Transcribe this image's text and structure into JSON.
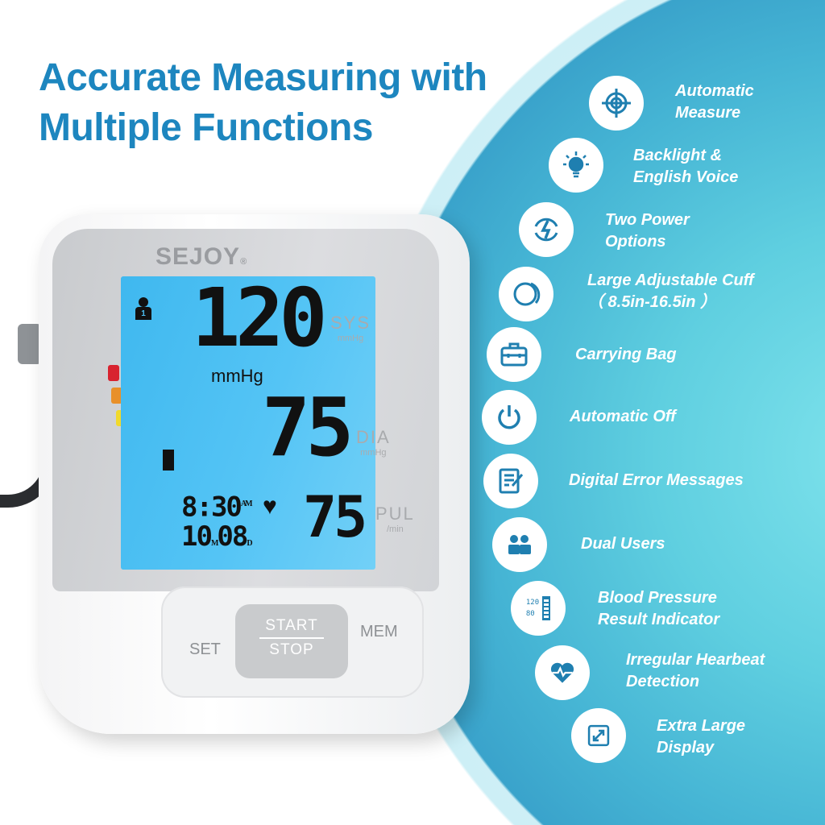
{
  "title": {
    "line1": "Accurate Measuring with",
    "line2": "Multiple Functions"
  },
  "device": {
    "brand": "SEJOY",
    "registered": "®",
    "display": {
      "sys": "120",
      "dia": "75",
      "pul": "75",
      "unit": "mmHg",
      "time": "8:30",
      "ampm": "AM",
      "month": "10",
      "month_label": "M",
      "day": "08",
      "day_label": "D",
      "user": "1"
    },
    "labels": {
      "sys": "SYS",
      "sys_unit": "mmHg",
      "dia": "DIA",
      "dia_unit": "mmHg",
      "pul": "PUL",
      "pul_unit": "/min"
    },
    "indicator_colors": [
      "#d8232f",
      "#e8902a",
      "#f1d92c",
      "#3dbd3a",
      "#3dbd3a",
      "#3dbd3a"
    ],
    "buttons": {
      "set": "SET",
      "start": "START",
      "stop": "STOP",
      "mem": "MEM"
    }
  },
  "features": [
    {
      "icon": "target-icon",
      "line1": "Automatic",
      "line2": "Measure"
    },
    {
      "icon": "lightbulb-icon",
      "line1": "Backlight &",
      "line2": "English Voice"
    },
    {
      "icon": "power-cycle-icon",
      "line1": "Two Power",
      "line2": "Options"
    },
    {
      "icon": "cuff-icon",
      "line1": "Large Adjustable Cuff",
      "line2": "（ 8.5in-16.5in ）"
    },
    {
      "icon": "briefcase-icon",
      "line1": "Carrying Bag"
    },
    {
      "icon": "power-icon",
      "line1": "Automatic Off"
    },
    {
      "icon": "document-edit-icon",
      "line1": "Digital Error Messages"
    },
    {
      "icon": "users-icon",
      "line1": "Dual Users"
    },
    {
      "icon": "bp-indicator-icon",
      "line1": "Blood Pressure",
      "line2": "Result Indicator",
      "icon_text1": "120",
      "icon_text2": "80"
    },
    {
      "icon": "heartbeat-icon",
      "line1": "Irregular Hearbeat",
      "line2": "Detection"
    },
    {
      "icon": "expand-icon",
      "line1": "Extra Large",
      "line2": "Display"
    }
  ],
  "colors": {
    "title": "#1d86bf",
    "icon": "#1f7fb0",
    "lcd": "#4cc0f3"
  }
}
